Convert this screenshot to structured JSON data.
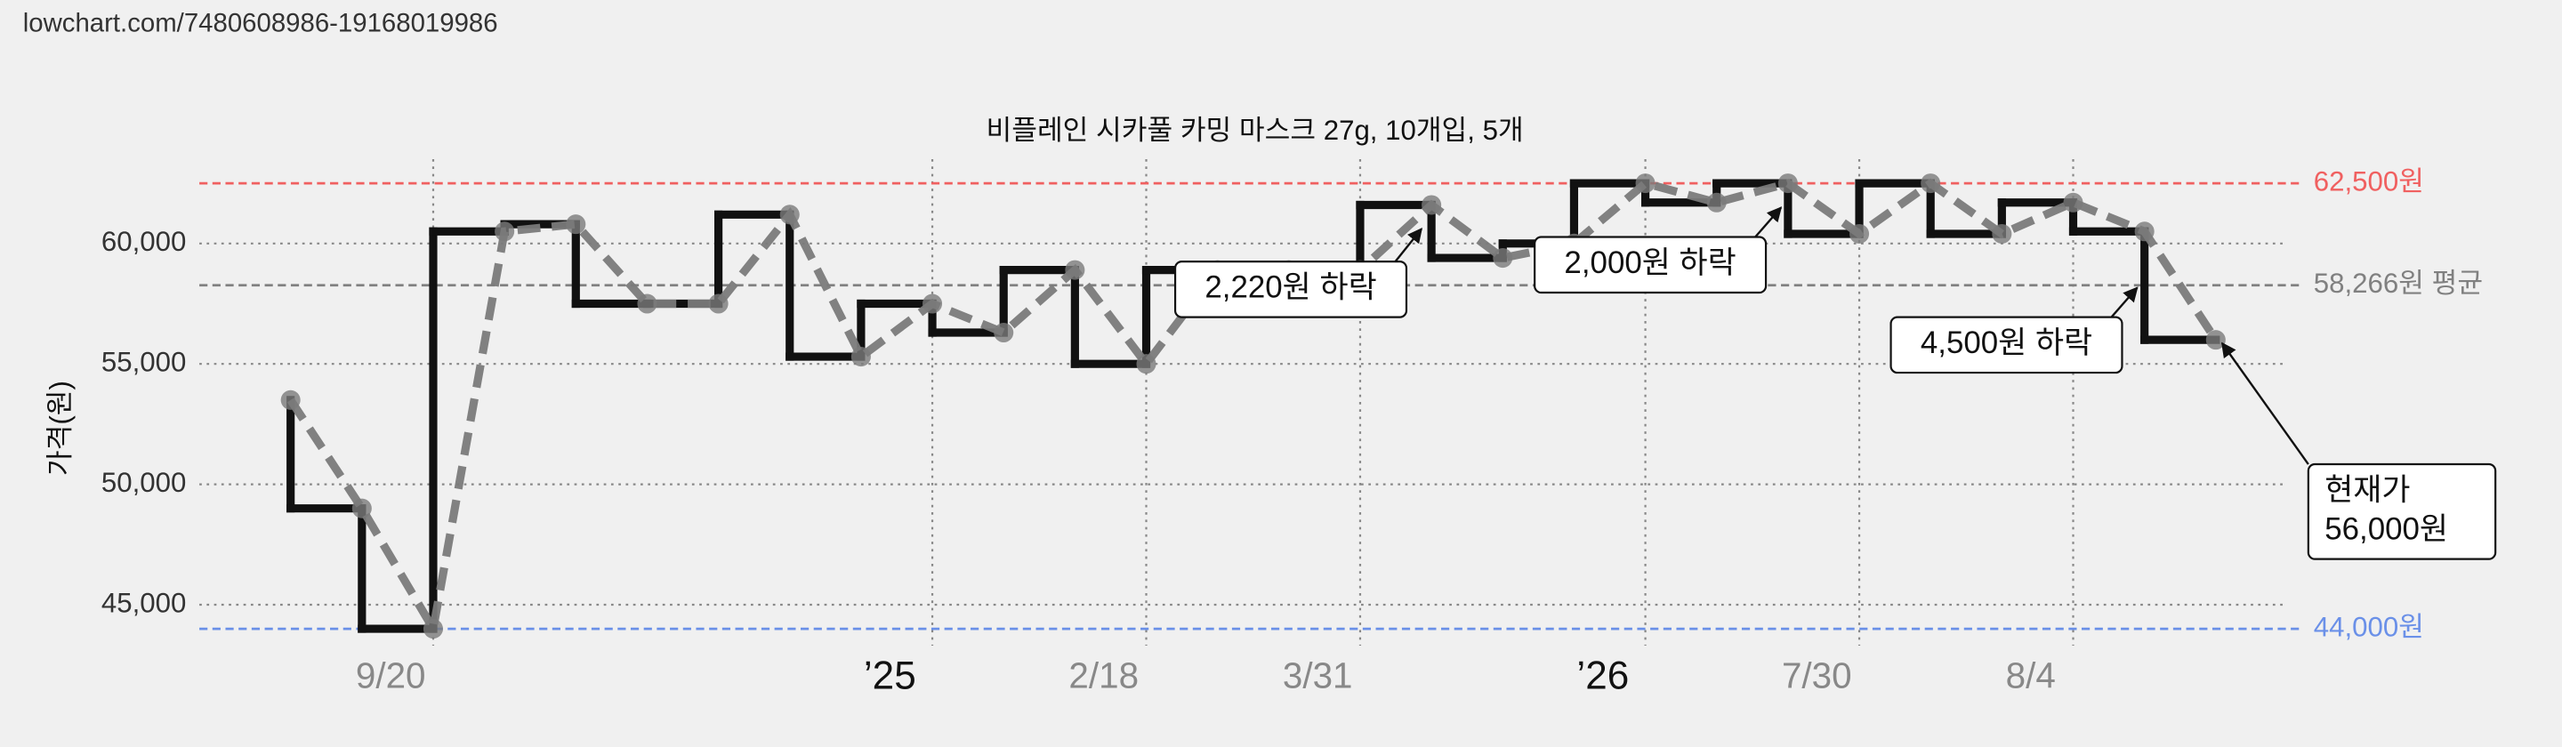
{
  "page_header": {
    "url": "lowchart.com/7480608986-19168019986"
  },
  "chart_data": {
    "type": "line",
    "title": "비플레인 시카풀 카밍 마스크 27g, 10개입, 5개",
    "y_label": "가격(원)",
    "values": [
      53500,
      49000,
      44000,
      60500,
      60800,
      57500,
      57500,
      61200,
      55300,
      57500,
      56300,
      58900,
      55000,
      58900,
      58900,
      58900,
      61600,
      59400,
      60000,
      62500,
      61700,
      62500,
      60400,
      62500,
      60400,
      61700,
      60500,
      56000
    ],
    "color": "#7a7a7a",
    "step_color": "#111111",
    "xlim": [
      -1.28,
      27.96
    ],
    "xticks": [
      {
        "value": 2,
        "label": "9/20"
      },
      {
        "value": 9,
        "label": "’25"
      },
      {
        "value": 12,
        "label": "2/18"
      },
      {
        "value": 15,
        "label": "3/31"
      },
      {
        "value": 19,
        "label": "’26"
      },
      {
        "value": 22,
        "label": "7/30"
      },
      {
        "value": 25,
        "label": "8/4"
      }
    ],
    "ylim": [
      43300,
      63500
    ],
    "yticks": [
      {
        "value": 45000,
        "label": "45,000"
      },
      {
        "value": 50000,
        "label": "50,000"
      },
      {
        "value": 55000,
        "label": "55,000"
      },
      {
        "value": 60000,
        "label": "60,000"
      }
    ],
    "grid": true,
    "reference_lines": [
      {
        "value": 62500,
        "label": "62,500원",
        "color": "#f06060"
      },
      {
        "value": 58266,
        "label": "58,266원 평균",
        "color": "#808080"
      },
      {
        "value": 44000,
        "label": "44,000원",
        "color": "#6a90e8"
      }
    ],
    "annotations": [
      {
        "text": "2,220원 하락"
      },
      {
        "text": "2,000원 하락"
      },
      {
        "text": "4,500원 하락"
      },
      {
        "lines": [
          "현재가",
          "56,000원"
        ]
      }
    ]
  }
}
